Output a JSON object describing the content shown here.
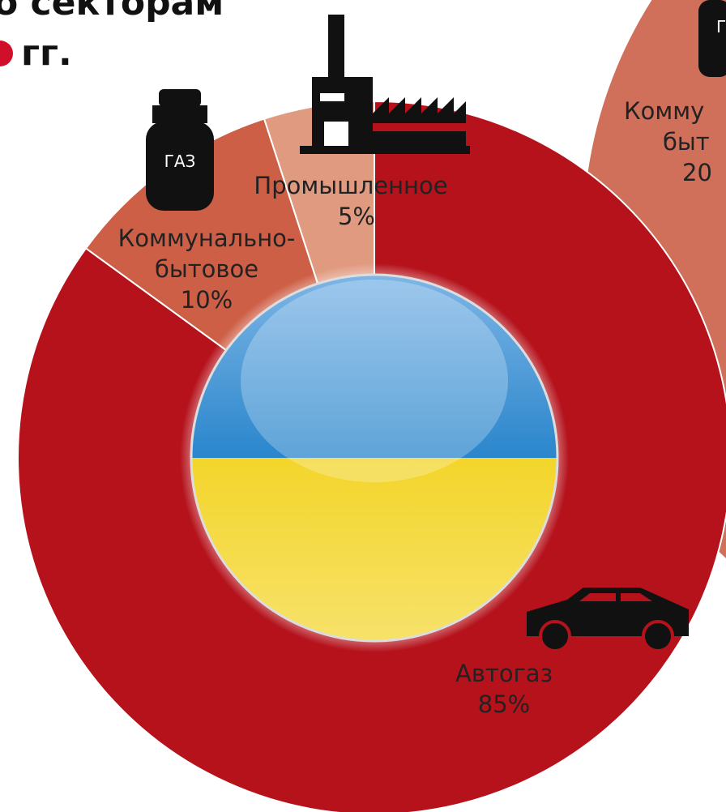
{
  "chart_data": {
    "type": "pie",
    "title_lines": [
      "о секторам",
      "гг."
    ],
    "categories": [
      "Автогаз",
      "Коммунально-бытовое",
      "Промышленное"
    ],
    "values": [
      85,
      10,
      5
    ],
    "value_labels": [
      "85%",
      "10%",
      "5%"
    ],
    "colors": [
      "#b5121b",
      "#cd5f46",
      "#e09a80"
    ],
    "icon_texts": [
      "ГАЗ",
      "Г"
    ],
    "cropped_texts": [
      "Комму",
      "быт",
      "20"
    ]
  }
}
